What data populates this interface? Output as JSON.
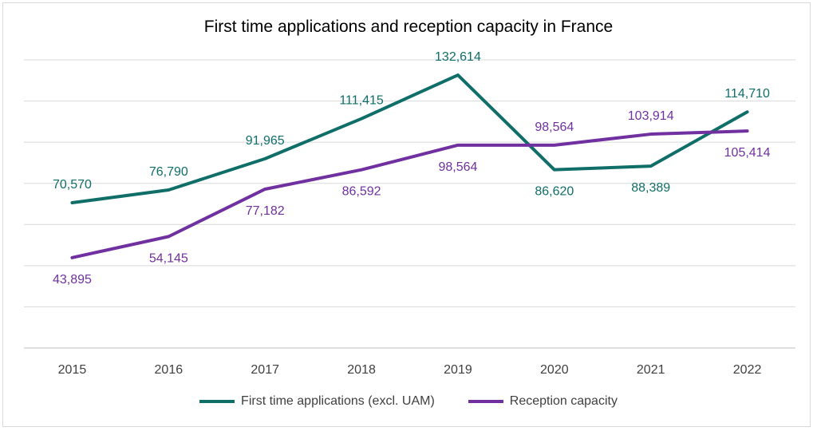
{
  "chart_data": {
    "type": "line",
    "title": "First time applications and reception capacity in France",
    "categories": [
      "2015",
      "2016",
      "2017",
      "2018",
      "2019",
      "2020",
      "2021",
      "2022"
    ],
    "ylim": [
      0,
      140000
    ],
    "grid": true,
    "legend_position": "bottom",
    "series": [
      {
        "name": "First time applications (excl. UAM)",
        "color": "#0f6e68",
        "values": [
          70570,
          76790,
          91965,
          111415,
          132614,
          86620,
          88389,
          114710
        ],
        "labels": [
          "70,570",
          "76,790",
          "91,965",
          "111,415",
          "132,614",
          "86,620",
          "88,389",
          "114,710"
        ],
        "label_pos": [
          "above",
          "above",
          "above",
          "above",
          "above",
          "below",
          "below",
          "above"
        ]
      },
      {
        "name": "Reception capacity",
        "color": "#7030a0",
        "values": [
          43895,
          54145,
          77182,
          86592,
          98564,
          98564,
          103914,
          105414
        ],
        "labels": [
          "43,895",
          "54,145",
          "77,182",
          "86,592",
          "98,564",
          "98,564",
          "103,914",
          "105,414"
        ],
        "label_pos": [
          "below",
          "below",
          "below",
          "below",
          "below",
          "above",
          "above",
          "below"
        ]
      }
    ]
  }
}
